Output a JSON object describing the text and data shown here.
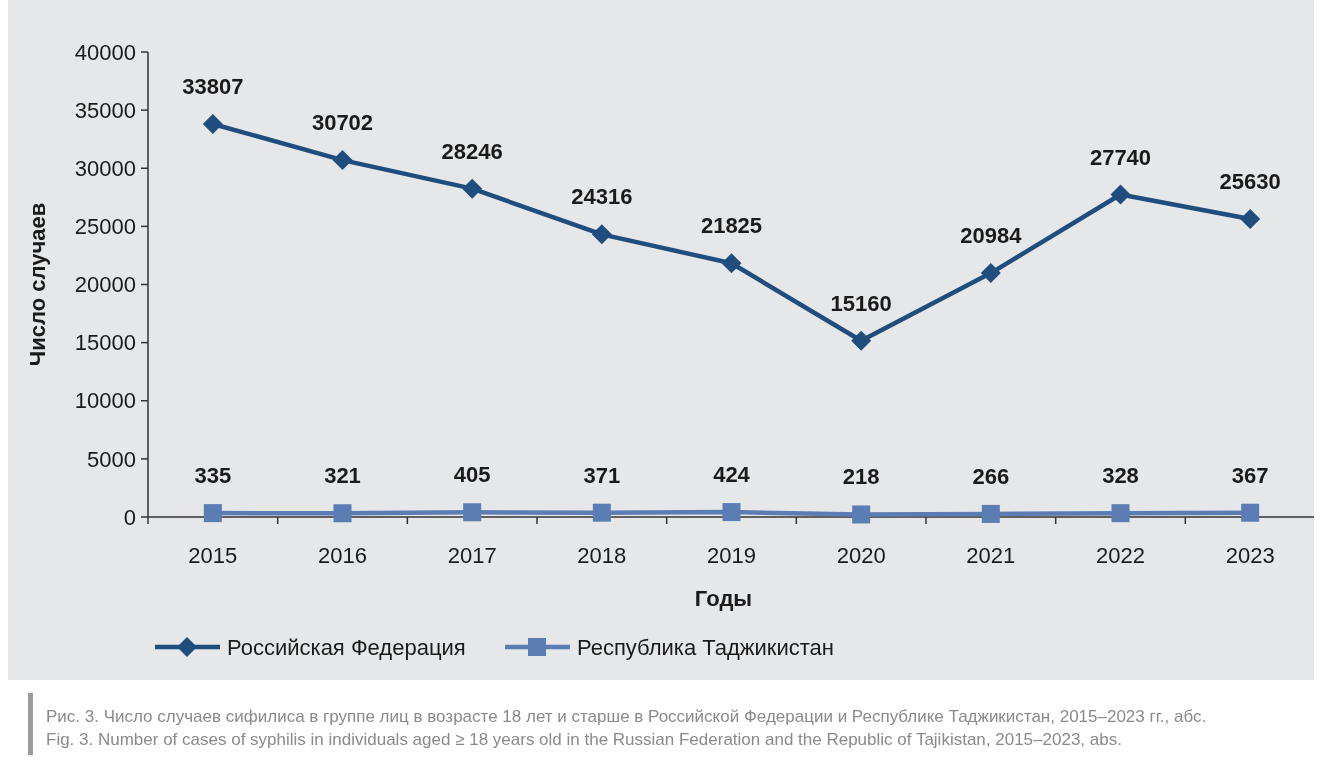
{
  "chart_data": {
    "type": "line",
    "xlabel": "Годы",
    "ylabel": "Число случаев",
    "categories": [
      "2015",
      "2016",
      "2017",
      "2018",
      "2019",
      "2020",
      "2021",
      "2022",
      "2023"
    ],
    "series": [
      {
        "name": "Российская Федерация",
        "color": "#1f4e7e",
        "marker": "diamond",
        "values": [
          33807,
          30702,
          28246,
          24316,
          21825,
          15160,
          20984,
          27740,
          25630
        ]
      },
      {
        "name": "Республика Таджикистан",
        "color": "#5b7db3",
        "marker": "square",
        "values": [
          335,
          321,
          405,
          371,
          424,
          218,
          266,
          328,
          367
        ]
      }
    ],
    "ylim": [
      0,
      40000
    ],
    "yticks": [
      0,
      5000,
      10000,
      15000,
      20000,
      25000,
      30000,
      35000,
      40000
    ],
    "grid": false,
    "legend": "bottom",
    "data_labels": true,
    "line_style": "solid",
    "annotations": [
      "Рис. 3. Число случаев сифилиса в группе лиц в возрасте 18 лет и старше в Российской Федерации и Республике Таджикистан, 2015–2023 гг., абс.",
      "Fig. 3. Number of cases of syphilis in individuals aged ≥ 18 years old in the Russian Federation and the Republic of Tajikistan, 2015–2023, abs."
    ]
  }
}
